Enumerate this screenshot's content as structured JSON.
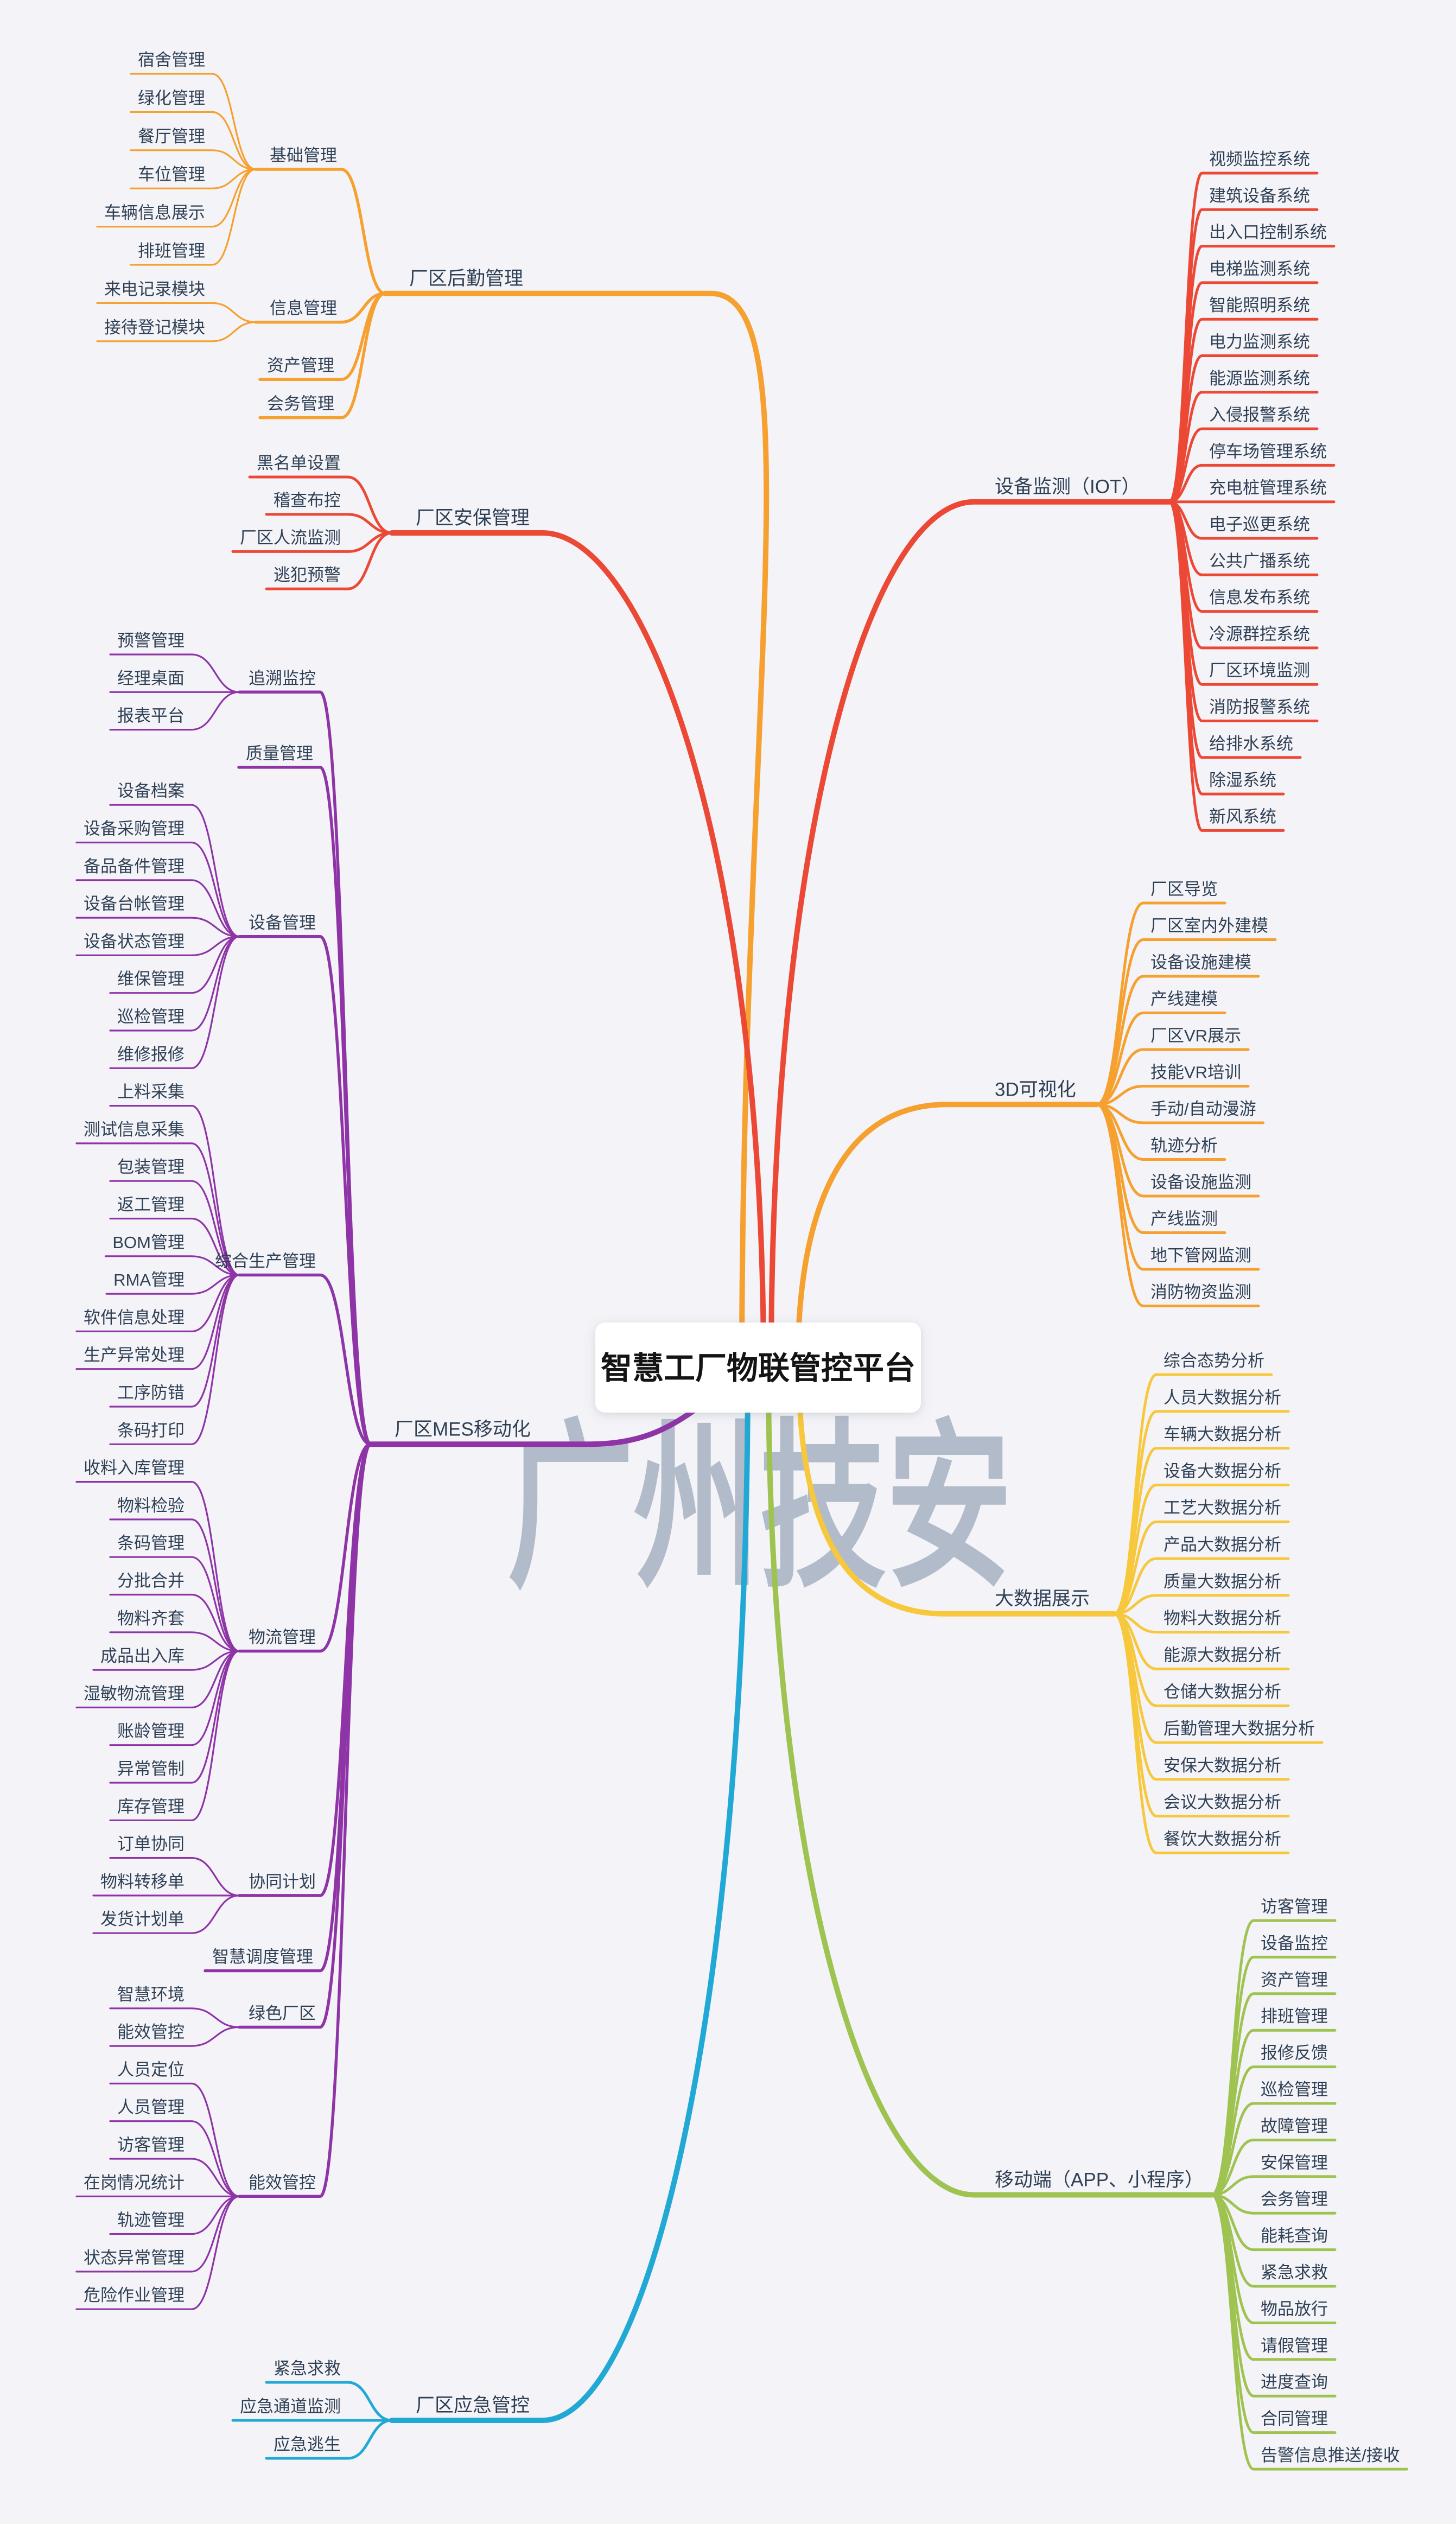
{
  "title": "智慧工厂物联管控平台",
  "watermark": "广州技安",
  "colors": {
    "background": "#F4F4F8",
    "text": "#2F4055",
    "title_text": "#141414",
    "title_box": "#FFFFFF",
    "watermark": "#A7B2C1",
    "orange": "#F5A02F",
    "red": "#EC4836",
    "purple": "#8E34A6",
    "cyan": "#21A8D4",
    "yellow": "#F7C73C",
    "green": "#9FC351"
  },
  "branches": [
    {
      "label": "厂区后勤管理",
      "color": "#F5A02F",
      "side": "left",
      "children": [
        {
          "label": "基础管理",
          "children": [
            {
              "label": "宿舍管理"
            },
            {
              "label": "绿化管理"
            },
            {
              "label": "餐厅管理"
            },
            {
              "label": "车位管理"
            },
            {
              "label": "车辆信息展示"
            },
            {
              "label": "排班管理"
            }
          ]
        },
        {
          "label": "信息管理",
          "children": [
            {
              "label": "来电记录模块"
            },
            {
              "label": "接待登记模块"
            }
          ]
        },
        {
          "label": "资产管理"
        },
        {
          "label": "会务管理"
        }
      ]
    },
    {
      "label": "厂区安保管理",
      "color": "#EC4836",
      "side": "left",
      "children": [
        {
          "label": "黑名单设置"
        },
        {
          "label": "稽查布控"
        },
        {
          "label": "厂区人流监测"
        },
        {
          "label": "逃犯预警"
        }
      ]
    },
    {
      "label": "厂区MES移动化",
      "color": "#8E34A6",
      "side": "left",
      "children": [
        {
          "label": "追溯监控",
          "children": [
            {
              "label": "预警管理"
            },
            {
              "label": "经理桌面"
            },
            {
              "label": "报表平台"
            }
          ]
        },
        {
          "label": "质量管理"
        },
        {
          "label": "设备管理",
          "children": [
            {
              "label": "设备档案"
            },
            {
              "label": "设备采购管理"
            },
            {
              "label": "备品备件管理"
            },
            {
              "label": "设备台帐管理"
            },
            {
              "label": "设备状态管理"
            },
            {
              "label": "维保管理"
            },
            {
              "label": "巡检管理"
            },
            {
              "label": "维修报修"
            }
          ]
        },
        {
          "label": "综合生产管理",
          "children": [
            {
              "label": "上料采集"
            },
            {
              "label": "测试信息采集"
            },
            {
              "label": "包装管理"
            },
            {
              "label": "返工管理"
            },
            {
              "label": "BOM管理"
            },
            {
              "label": "RMA管理"
            },
            {
              "label": "软件信息处理"
            },
            {
              "label": "生产异常处理"
            },
            {
              "label": "工序防错"
            },
            {
              "label": "条码打印"
            }
          ]
        },
        {
          "label": "物流管理",
          "children": [
            {
              "label": "收料入库管理"
            },
            {
              "label": "物料检验"
            },
            {
              "label": "条码管理"
            },
            {
              "label": "分批合并"
            },
            {
              "label": "物料齐套"
            },
            {
              "label": "成品出入库"
            },
            {
              "label": "湿敏物流管理"
            },
            {
              "label": "账龄管理"
            },
            {
              "label": "异常管制"
            },
            {
              "label": "库存管理"
            }
          ]
        },
        {
          "label": "协同计划",
          "children": [
            {
              "label": "订单协同"
            },
            {
              "label": "物料转移单"
            },
            {
              "label": "发货计划单"
            }
          ]
        },
        {
          "label": "智慧调度管理"
        },
        {
          "label": "绿色厂区",
          "children": [
            {
              "label": "智慧环境"
            },
            {
              "label": "能效管控"
            }
          ]
        },
        {
          "label": "能效管控",
          "children": [
            {
              "label": "人员定位"
            },
            {
              "label": "人员管理"
            },
            {
              "label": "访客管理"
            },
            {
              "label": "在岗情况统计"
            },
            {
              "label": "轨迹管理"
            },
            {
              "label": "状态异常管理"
            },
            {
              "label": "危险作业管理"
            }
          ]
        }
      ]
    },
    {
      "label": "厂区应急管控",
      "color": "#21A8D4",
      "side": "left",
      "children": [
        {
          "label": "紧急求救"
        },
        {
          "label": "应急通道监测"
        },
        {
          "label": "应急逃生"
        }
      ]
    },
    {
      "label": "设备监测（IOT）",
      "color": "#EC4836",
      "side": "right",
      "children": [
        {
          "label": "视频监控系统"
        },
        {
          "label": "建筑设备系统"
        },
        {
          "label": "出入口控制系统"
        },
        {
          "label": "电梯监测系统"
        },
        {
          "label": "智能照明系统"
        },
        {
          "label": "电力监测系统"
        },
        {
          "label": "能源监测系统"
        },
        {
          "label": "入侵报警系统"
        },
        {
          "label": "停车场管理系统"
        },
        {
          "label": "充电桩管理系统"
        },
        {
          "label": "电子巡更系统"
        },
        {
          "label": "公共广播系统"
        },
        {
          "label": "信息发布系统"
        },
        {
          "label": "冷源群控系统"
        },
        {
          "label": "厂区环境监测"
        },
        {
          "label": "消防报警系统"
        },
        {
          "label": "给排水系统"
        },
        {
          "label": "除湿系统"
        },
        {
          "label": "新风系统"
        }
      ]
    },
    {
      "label": "3D可视化",
      "color": "#F5A02F",
      "side": "right",
      "children": [
        {
          "label": "厂区导览"
        },
        {
          "label": "厂区室内外建模"
        },
        {
          "label": "设备设施建模"
        },
        {
          "label": "产线建模"
        },
        {
          "label": "厂区VR展示"
        },
        {
          "label": "技能VR培训"
        },
        {
          "label": "手动/自动漫游"
        },
        {
          "label": "轨迹分析"
        },
        {
          "label": "设备设施监测"
        },
        {
          "label": "产线监测"
        },
        {
          "label": "地下管网监测"
        },
        {
          "label": "消防物资监测"
        }
      ]
    },
    {
      "label": "大数据展示",
      "color": "#F7C73C",
      "side": "right",
      "children": [
        {
          "label": "综合态势分析"
        },
        {
          "label": "人员大数据分析"
        },
        {
          "label": "车辆大数据分析"
        },
        {
          "label": "设备大数据分析"
        },
        {
          "label": "工艺大数据分析"
        },
        {
          "label": "产品大数据分析"
        },
        {
          "label": "质量大数据分析"
        },
        {
          "label": "物料大数据分析"
        },
        {
          "label": "能源大数据分析"
        },
        {
          "label": "仓储大数据分析"
        },
        {
          "label": "后勤管理大数据分析"
        },
        {
          "label": "安保大数据分析"
        },
        {
          "label": "会议大数据分析"
        },
        {
          "label": "餐饮大数据分析"
        }
      ]
    },
    {
      "label": "移动端（APP、小程序）",
      "color": "#9FC351",
      "side": "right",
      "children": [
        {
          "label": "访客管理"
        },
        {
          "label": "设备监控"
        },
        {
          "label": "资产管理"
        },
        {
          "label": "排班管理"
        },
        {
          "label": "报修反馈"
        },
        {
          "label": "巡检管理"
        },
        {
          "label": "故障管理"
        },
        {
          "label": "安保管理"
        },
        {
          "label": "会务管理"
        },
        {
          "label": "能耗查询"
        },
        {
          "label": "紧急求救"
        },
        {
          "label": "物品放行"
        },
        {
          "label": "请假管理"
        },
        {
          "label": "进度查询"
        },
        {
          "label": "合同管理"
        },
        {
          "label": "告警信息推送/接收"
        }
      ]
    }
  ]
}
